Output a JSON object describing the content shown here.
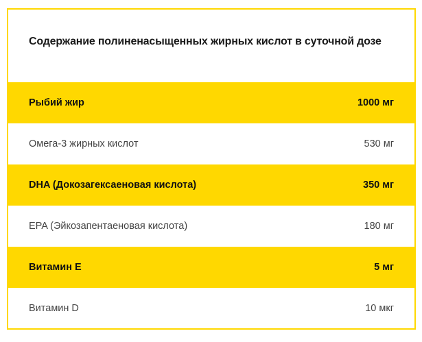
{
  "title": "Содержание полиненасыщенных жирных кислот в суточной дозе",
  "accent_color": "#FFD800",
  "rows": [
    {
      "name": "Рыбий жир",
      "value": "1000 мг",
      "highlighted": true
    },
    {
      "name": "Омега-3 жирных кислот",
      "value": "530 мг",
      "highlighted": false
    },
    {
      "name": "DHA (Докозагексаеновая кислота)",
      "value": "350 мг",
      "highlighted": true
    },
    {
      "name": "EPA (Эйкозапентаеновая кислота)",
      "value": "180 мг",
      "highlighted": false
    },
    {
      "name": "Витамин E",
      "value": "5 мг",
      "highlighted": true
    },
    {
      "name": "Витамин D",
      "value": "10 мкг",
      "highlighted": false
    }
  ]
}
